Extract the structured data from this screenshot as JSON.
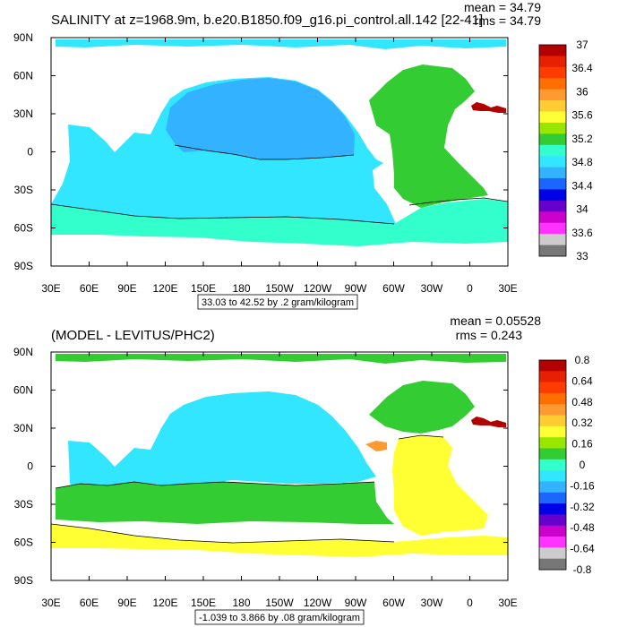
{
  "chart_data": [
    {
      "type": "heatmap",
      "title": "SALINITY at z=1968.9m, b.e20.B1850.f09_g16.pi_control.all.142 [22-41]",
      "stats": {
        "mean": "mean = 34.79",
        "rms": "rms = 34.79"
      },
      "x_ticks": [
        "30E",
        "60E",
        "90E",
        "120E",
        "150E",
        "180",
        "150W",
        "120W",
        "90W",
        "60W",
        "30W",
        "0",
        "30E"
      ],
      "y_ticks": [
        "90N",
        "60N",
        "30N",
        "0",
        "30S",
        "60S",
        "90S"
      ],
      "xlim_deg": [
        30,
        390
      ],
      "ylim_deg": [
        -90,
        90
      ],
      "range_label": "33.03 to 42.52 by .2 gram/kilogram",
      "colorbar": {
        "labels": [
          "37",
          "36.4",
          "36",
          "35.6",
          "35.2",
          "34.8",
          "34.4",
          "34",
          "33.6",
          "33"
        ],
        "colors": [
          "#b30000",
          "#e62000",
          "#ff3c00",
          "#ff6f00",
          "#ff9a33",
          "#ffcd33",
          "#ffff33",
          "#99e600",
          "#33cc33",
          "#33ffcc",
          "#33e6ff",
          "#33b3ff",
          "#1a66ff",
          "#0000e6",
          "#6600cc",
          "#cc00cc",
          "#ff33ff",
          "#cccccc",
          "#777777"
        ]
      },
      "regions": [
        {
          "name": "pacific-atlantic-34.8",
          "color": "#33e6ff"
        },
        {
          "name": "atlantic-35.2",
          "color": "#33cc33"
        },
        {
          "name": "southern-ocean-34.8",
          "color": "#33ffcc"
        },
        {
          "name": "arctic-34.8",
          "color": "#33e6ff"
        },
        {
          "name": "mediterranean-37",
          "color": "#b30000"
        },
        {
          "name": "north-pacific-34.4",
          "color": "#33b3ff"
        }
      ]
    },
    {
      "type": "heatmap",
      "title": "(MODEL - LEVITUS/PHC2)",
      "stats": {
        "mean": "mean = 0.05528",
        "rms": "rms = 0.243"
      },
      "x_ticks": [
        "30E",
        "60E",
        "90E",
        "120E",
        "150E",
        "180",
        "150W",
        "120W",
        "90W",
        "60W",
        "30W",
        "0",
        "30E"
      ],
      "y_ticks": [
        "90N",
        "60N",
        "30N",
        "0",
        "30S",
        "60S",
        "90S"
      ],
      "xlim_deg": [
        30,
        390
      ],
      "ylim_deg": [
        -90,
        90
      ],
      "range_label": "-1.039 to 3.866 by .08 gram/kilogram",
      "colorbar": {
        "labels": [
          "0.8",
          "0.64",
          "0.48",
          "0.32",
          "0.16",
          "0",
          "-0.16",
          "-0.32",
          "-0.48",
          "-0.64",
          "-0.8"
        ],
        "colors": [
          "#b30000",
          "#e62000",
          "#ff3c00",
          "#ff6f00",
          "#ff9a33",
          "#ffcd33",
          "#ffff33",
          "#99e600",
          "#33cc33",
          "#33ffcc",
          "#33e6ff",
          "#33b3ff",
          "#1a66ff",
          "#0000e6",
          "#6600cc",
          "#cc00cc",
          "#ff33ff",
          "#cccccc",
          "#777777"
        ]
      },
      "regions": [
        {
          "name": "pacific-0",
          "color": "#33e6ff"
        },
        {
          "name": "south-pacific-0.08",
          "color": "#33cc33"
        },
        {
          "name": "south-indian-0.08",
          "color": "#33cc33"
        },
        {
          "name": "southern-ocean-0.24",
          "color": "#ffff33"
        },
        {
          "name": "atlantic-0.24",
          "color": "#ffff33"
        },
        {
          "name": "mediterranean-0.8",
          "color": "#b30000"
        }
      ]
    }
  ]
}
